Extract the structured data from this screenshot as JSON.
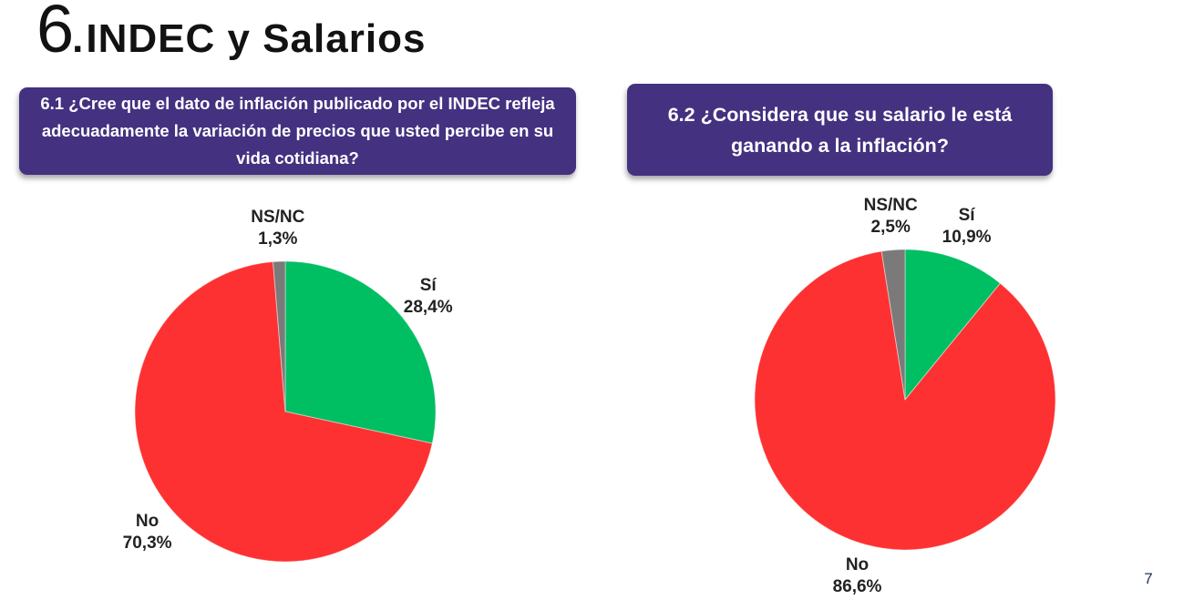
{
  "title": {
    "number": "6",
    "dot": ".",
    "name": "INDEC y Salarios"
  },
  "page": {
    "number": "7"
  },
  "colors": {
    "question_box_purple": "#443180",
    "question_text": "#FFFFFF",
    "yes_green": "#00BE62",
    "no_red": "#FD3131",
    "nsnc_gray": "#7A7A7A",
    "label_text": "#222222"
  },
  "chart_data": [
    {
      "type": "pie",
      "question": "6.1 ¿Cree que el dato de inflación publicado por el INDEC refleja adecuadamente la variación de precios que usted percibe en su vida cotidiana?",
      "categories": [
        "Sí",
        "No",
        "NS/NC"
      ],
      "values": [
        28.4,
        70.3,
        1.3
      ],
      "slices": [
        {
          "label": "Sí",
          "value": 28.4,
          "display": "28,4%",
          "color": "#00BE62"
        },
        {
          "label": "No",
          "value": 70.3,
          "display": "70,3%",
          "color": "#FD3131"
        },
        {
          "label": "NS/NC",
          "value": 1.3,
          "display": "1,3%",
          "color": "#7A7A7A"
        }
      ],
      "start_angle_deg": 0,
      "direction": "clockwise",
      "labels": "outside",
      "legend": "none"
    },
    {
      "type": "pie",
      "question": "6.2 ¿Considera que su salario le está ganando a la inflación?",
      "categories": [
        "Sí",
        "No",
        "NS/NC"
      ],
      "values": [
        10.9,
        86.6,
        2.5
      ],
      "slices": [
        {
          "label": "Sí",
          "value": 10.9,
          "display": "10,9%",
          "color": "#00BE62"
        },
        {
          "label": "No",
          "value": 86.6,
          "display": "86,6%",
          "color": "#FD3131"
        },
        {
          "label": "NS/NC",
          "value": 2.5,
          "display": "2,5%",
          "color": "#7A7A7A"
        }
      ],
      "start_angle_deg": 0,
      "direction": "clockwise",
      "labels": "outside",
      "legend": "none"
    }
  ]
}
